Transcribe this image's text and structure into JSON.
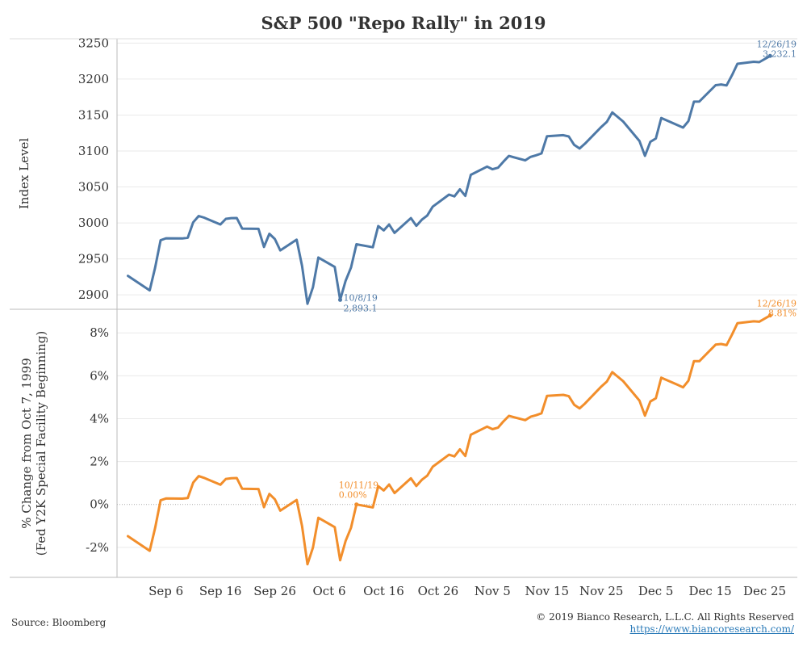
{
  "title": "S&P 500 \"Repo Rally\" in 2019",
  "footer": {
    "source": "Source: Bloomberg",
    "copyright": "© 2019 Bianco Research, L.L.C. All Rights Reserved",
    "website": "https://www.biancoresearch.com/"
  },
  "colors": {
    "index_line": "#4e79a7",
    "pct_line": "#f28e2b",
    "grid": "#eaeaea",
    "axis": "#bbbbbb",
    "text": "#333333"
  },
  "chart_data": [
    {
      "type": "line",
      "panel": "top",
      "ylabel": "Index Level",
      "ylim": [
        2880,
        3256
      ],
      "yticks": [
        2900,
        2950,
        3000,
        3050,
        3100,
        3150,
        3200,
        3250
      ],
      "series": [
        {
          "name": "S&P 500 Index Level",
          "color": "#4e79a7",
          "points": [
            [
              "2019-08-30",
              2926.5
            ],
            [
              "2019-09-03",
              2906.3
            ],
            [
              "2019-09-04",
              2937.8
            ],
            [
              "2019-09-05",
              2976.0
            ],
            [
              "2019-09-06",
              2978.7
            ],
            [
              "2019-09-09",
              2978.4
            ],
            [
              "2019-09-10",
              2979.4
            ],
            [
              "2019-09-11",
              3000.9
            ],
            [
              "2019-09-12",
              3009.6
            ],
            [
              "2019-09-13",
              3007.4
            ],
            [
              "2019-09-16",
              2997.9
            ],
            [
              "2019-09-17",
              3005.7
            ],
            [
              "2019-09-18",
              3006.7
            ],
            [
              "2019-09-19",
              3006.8
            ],
            [
              "2019-09-20",
              2992.1
            ],
            [
              "2019-09-23",
              2991.8
            ],
            [
              "2019-09-24",
              2966.6
            ],
            [
              "2019-09-25",
              2984.9
            ],
            [
              "2019-09-26",
              2977.6
            ],
            [
              "2019-09-27",
              2961.8
            ],
            [
              "2019-09-30",
              2976.7
            ],
            [
              "2019-10-01",
              2940.3
            ],
            [
              "2019-10-02",
              2887.6
            ],
            [
              "2019-10-03",
              2910.6
            ],
            [
              "2019-10-04",
              2952.0
            ],
            [
              "2019-10-07",
              2938.8
            ],
            [
              "2019-10-08",
              2893.1
            ],
            [
              "2019-10-09",
              2919.4
            ],
            [
              "2019-10-10",
              2938.1
            ],
            [
              "2019-10-11",
              2970.3
            ],
            [
              "2019-10-14",
              2966.2
            ],
            [
              "2019-10-15",
              2995.7
            ],
            [
              "2019-10-16",
              2989.7
            ],
            [
              "2019-10-17",
              2997.9
            ],
            [
              "2019-10-18",
              2986.2
            ],
            [
              "2019-10-21",
              3006.7
            ],
            [
              "2019-10-22",
              2995.99
            ],
            [
              "2019-10-23",
              3004.5
            ],
            [
              "2019-10-24",
              3010.3
            ],
            [
              "2019-10-25",
              3022.6
            ],
            [
              "2019-10-28",
              3039.4
            ],
            [
              "2019-10-29",
              3036.9
            ],
            [
              "2019-10-30",
              3046.8
            ],
            [
              "2019-10-31",
              3037.6
            ],
            [
              "2019-11-01",
              3066.9
            ],
            [
              "2019-11-04",
              3078.3
            ],
            [
              "2019-11-05",
              3074.6
            ],
            [
              "2019-11-06",
              3076.8
            ],
            [
              "2019-11-07",
              3085.2
            ],
            [
              "2019-11-08",
              3093.1
            ],
            [
              "2019-11-11",
              3087.0
            ],
            [
              "2019-11-12",
              3091.8
            ],
            [
              "2019-11-13",
              3094.0
            ],
            [
              "2019-11-14",
              3096.6
            ],
            [
              "2019-11-15",
              3120.5
            ],
            [
              "2019-11-18",
              3122.0
            ],
            [
              "2019-11-19",
              3120.2
            ],
            [
              "2019-11-20",
              3108.5
            ],
            [
              "2019-11-21",
              3103.5
            ],
            [
              "2019-11-22",
              3110.3
            ],
            [
              "2019-11-25",
              3133.6
            ],
            [
              "2019-11-26",
              3140.5
            ],
            [
              "2019-11-27",
              3153.6
            ],
            [
              "2019-11-29",
              3141.0
            ],
            [
              "2019-12-02",
              3113.9
            ],
            [
              "2019-12-03",
              3093.2
            ],
            [
              "2019-12-04",
              3112.8
            ],
            [
              "2019-12-05",
              3117.4
            ],
            [
              "2019-12-06",
              3145.9
            ],
            [
              "2019-12-09",
              3135.96
            ],
            [
              "2019-12-10",
              3132.5
            ],
            [
              "2019-12-11",
              3141.6
            ],
            [
              "2019-12-12",
              3168.6
            ],
            [
              "2019-12-13",
              3168.8
            ],
            [
              "2019-12-16",
              3191.5
            ],
            [
              "2019-12-17",
              3192.5
            ],
            [
              "2019-12-18",
              3191.1
            ],
            [
              "2019-12-19",
              3205.4
            ],
            [
              "2019-12-20",
              3221.2
            ],
            [
              "2019-12-23",
              3224.0
            ],
            [
              "2019-12-24",
              3223.4
            ],
            [
              "2019-12-26",
              3232.1
            ]
          ]
        }
      ],
      "annotations": [
        {
          "date": "2019-10-08",
          "value": 2893.1,
          "label_date": "10/8/19",
          "label_value": "2,893.1"
        },
        {
          "date": "2019-12-26",
          "value": 3232.1,
          "label_date": "12/26/19",
          "label_value": "3,232.1"
        }
      ]
    },
    {
      "type": "line",
      "panel": "bottom",
      "ylabel_line1": "% Change from Oct 7, 1999",
      "ylabel_line2": "(Fed Y2K Special Facility Beginning)",
      "ylim": [
        -3.4,
        9.1
      ],
      "yticks": [
        -2,
        0,
        2,
        4,
        6,
        8
      ],
      "ytick_labels": [
        "-2%",
        "0%",
        "2%",
        "4%",
        "6%",
        "8%"
      ],
      "series": [
        {
          "name": "% Change",
          "color": "#f28e2b",
          "points": [
            [
              "2019-08-30",
              -1.48
            ],
            [
              "2019-09-03",
              -2.16
            ],
            [
              "2019-09-04",
              -1.1
            ],
            [
              "2019-09-05",
              0.19
            ],
            [
              "2019-09-06",
              0.28
            ],
            [
              "2019-09-09",
              0.27
            ],
            [
              "2019-09-10",
              0.3
            ],
            [
              "2019-09-11",
              1.02
            ],
            [
              "2019-09-12",
              1.32
            ],
            [
              "2019-09-13",
              1.24
            ],
            [
              "2019-09-16",
              0.92
            ],
            [
              "2019-09-17",
              1.19
            ],
            [
              "2019-09-18",
              1.22
            ],
            [
              "2019-09-19",
              1.23
            ],
            [
              "2019-09-20",
              0.73
            ],
            [
              "2019-09-23",
              0.72
            ],
            [
              "2019-09-24",
              -0.13
            ],
            [
              "2019-09-25",
              0.49
            ],
            [
              "2019-09-26",
              0.24
            ],
            [
              "2019-09-27",
              -0.29
            ],
            [
              "2019-09-30",
              0.21
            ],
            [
              "2019-10-01",
              -1.01
            ],
            [
              "2019-10-02",
              -2.79
            ],
            [
              "2019-10-03",
              -2.01
            ],
            [
              "2019-10-04",
              -0.62
            ],
            [
              "2019-10-07",
              -1.06
            ],
            [
              "2019-10-08",
              -2.6
            ],
            [
              "2019-10-09",
              -1.71
            ],
            [
              "2019-10-10",
              -1.08
            ],
            [
              "2019-10-11",
              0.0
            ],
            [
              "2019-10-14",
              -0.14
            ],
            [
              "2019-10-15",
              0.85
            ],
            [
              "2019-10-16",
              0.65
            ],
            [
              "2019-10-17",
              0.93
            ],
            [
              "2019-10-18",
              0.53
            ],
            [
              "2019-10-21",
              1.22
            ],
            [
              "2019-10-22",
              0.86
            ],
            [
              "2019-10-23",
              1.15
            ],
            [
              "2019-10-24",
              1.34
            ],
            [
              "2019-10-25",
              1.76
            ],
            [
              "2019-10-28",
              2.32
            ],
            [
              "2019-10-29",
              2.24
            ],
            [
              "2019-10-30",
              2.57
            ],
            [
              "2019-10-31",
              2.26
            ],
            [
              "2019-11-01",
              3.25
            ],
            [
              "2019-11-04",
              3.63
            ],
            [
              "2019-11-05",
              3.51
            ],
            [
              "2019-11-06",
              3.58
            ],
            [
              "2019-11-07",
              3.87
            ],
            [
              "2019-11-08",
              4.13
            ],
            [
              "2019-11-11",
              3.93
            ],
            [
              "2019-11-12",
              4.09
            ],
            [
              "2019-11-13",
              4.16
            ],
            [
              "2019-11-14",
              4.25
            ],
            [
              "2019-11-15",
              5.06
            ],
            [
              "2019-11-18",
              5.11
            ],
            [
              "2019-11-19",
              5.05
            ],
            [
              "2019-11-20",
              4.65
            ],
            [
              "2019-11-21",
              4.48
            ],
            [
              "2019-11-22",
              4.71
            ],
            [
              "2019-11-25",
              5.5
            ],
            [
              "2019-11-26",
              5.73
            ],
            [
              "2019-11-27",
              6.17
            ],
            [
              "2019-11-29",
              5.75
            ],
            [
              "2019-12-02",
              4.84
            ],
            [
              "2019-12-03",
              4.14
            ],
            [
              "2019-12-04",
              4.8
            ],
            [
              "2019-12-05",
              4.95
            ],
            [
              "2019-12-06",
              5.91
            ],
            [
              "2019-12-09",
              5.58
            ],
            [
              "2019-12-10",
              5.46
            ],
            [
              "2019-12-11",
              5.77
            ],
            [
              "2019-12-12",
              6.68
            ],
            [
              "2019-12-13",
              6.68
            ],
            [
              "2019-12-16",
              7.45
            ],
            [
              "2019-12-17",
              7.48
            ],
            [
              "2019-12-18",
              7.43
            ],
            [
              "2019-12-19",
              7.92
            ],
            [
              "2019-12-20",
              8.45
            ],
            [
              "2019-12-23",
              8.54
            ],
            [
              "2019-12-24",
              8.52
            ],
            [
              "2019-12-26",
              8.81
            ]
          ]
        }
      ],
      "annotations": [
        {
          "date": "2019-10-11",
          "value": 0.0,
          "label_date": "10/11/19",
          "label_value": "0.00%"
        },
        {
          "date": "2019-12-26",
          "value": 8.81,
          "label_date": "12/26/19",
          "label_value": "8.81%"
        }
      ]
    }
  ],
  "xaxis": {
    "xlim": [
      "2019-08-28",
      "2019-12-31"
    ],
    "ticks": [
      {
        "date": "2019-09-06",
        "label": "Sep 6"
      },
      {
        "date": "2019-09-16",
        "label": "Sep 16"
      },
      {
        "date": "2019-09-26",
        "label": "Sep 26"
      },
      {
        "date": "2019-10-06",
        "label": "Oct 6"
      },
      {
        "date": "2019-10-16",
        "label": "Oct 16"
      },
      {
        "date": "2019-10-26",
        "label": "Oct 26"
      },
      {
        "date": "2019-11-05",
        "label": "Nov 5"
      },
      {
        "date": "2019-11-15",
        "label": "Nov 15"
      },
      {
        "date": "2019-11-25",
        "label": "Nov 25"
      },
      {
        "date": "2019-12-05",
        "label": "Dec 5"
      },
      {
        "date": "2019-12-15",
        "label": "Dec 15"
      },
      {
        "date": "2019-12-25",
        "label": "Dec 25"
      }
    ]
  }
}
